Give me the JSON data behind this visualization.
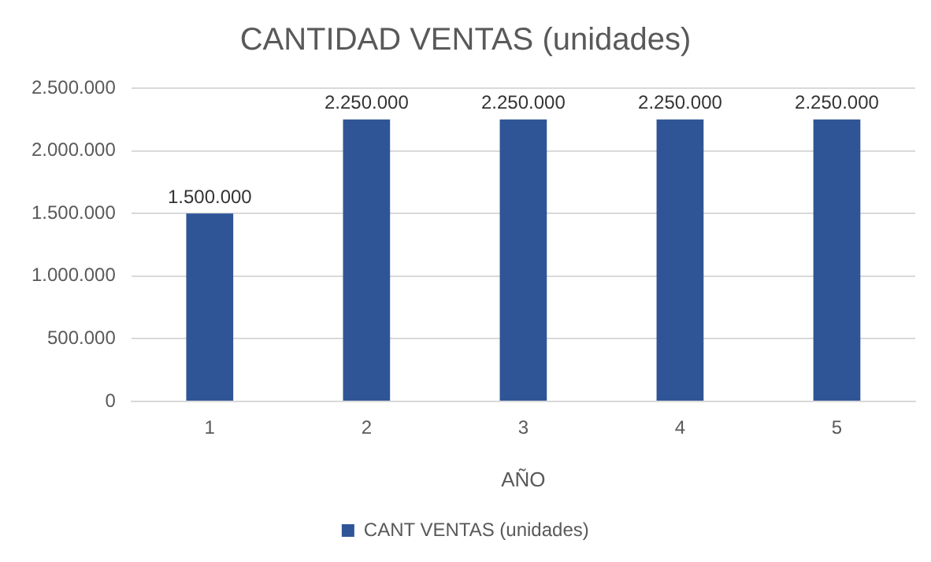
{
  "chart_data": {
    "type": "bar",
    "title": "CANTIDAD VENTAS (unidades)",
    "xlabel": "AÑO",
    "categories": [
      "1",
      "2",
      "3",
      "4",
      "5"
    ],
    "series": [
      {
        "name": "CANT VENTAS (unidades)",
        "color": "#2f5597",
        "values": [
          1500000,
          2250000,
          2250000,
          2250000,
          2250000
        ],
        "value_labels": [
          "1.500.000",
          "2.250.000",
          "2.250.000",
          "2.250.000",
          "2.250.000"
        ]
      }
    ],
    "ylim": [
      0,
      2500000
    ],
    "yticks": [
      {
        "value": 0,
        "label": "0"
      },
      {
        "value": 500000,
        "label": "500.000"
      },
      {
        "value": 1000000,
        "label": "1.000.000"
      },
      {
        "value": 1500000,
        "label": "1.500.000"
      },
      {
        "value": 2000000,
        "label": "2.000.000"
      },
      {
        "value": 2500000,
        "label": "2.500.000"
      }
    ],
    "grid": "y",
    "legend": "bottom"
  }
}
